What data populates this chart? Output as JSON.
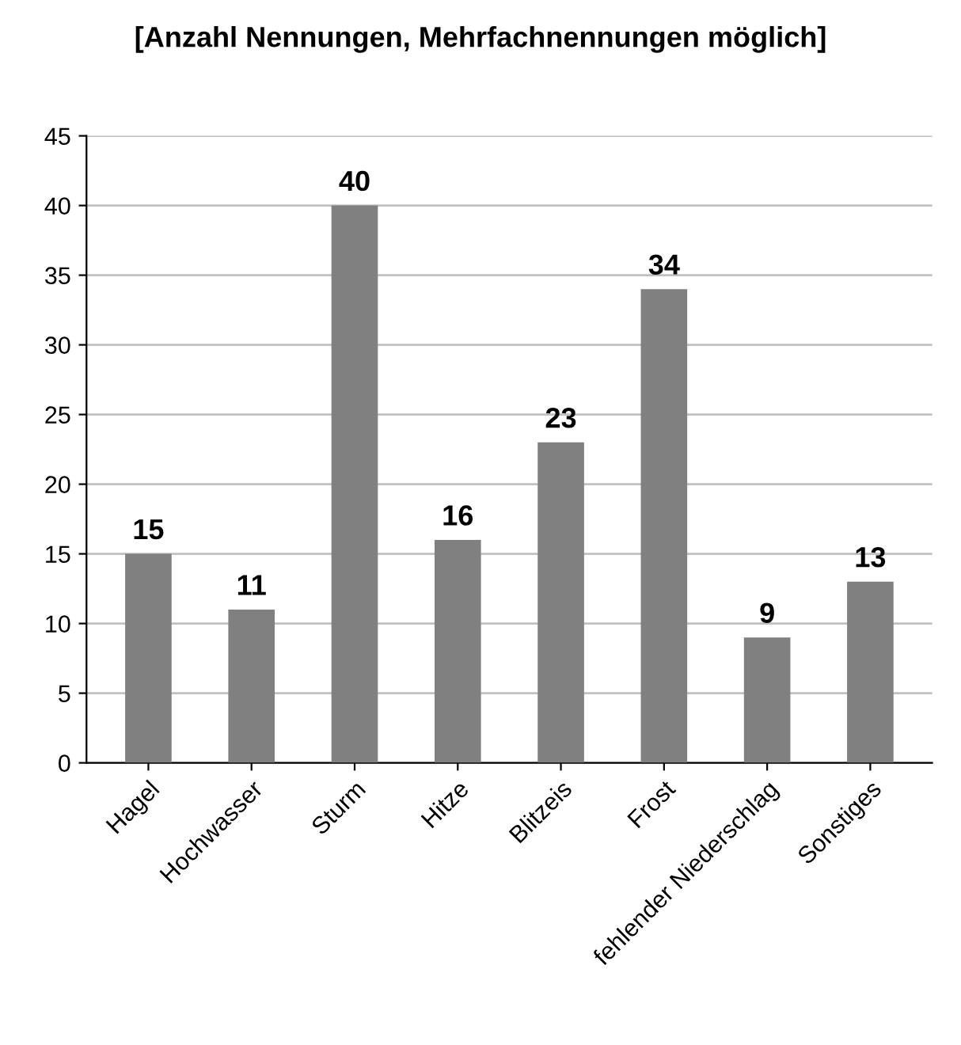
{
  "chart_data": {
    "type": "bar",
    "title": "[Anzahl Nennungen, Mehrfachnennungen möglich]",
    "categories": [
      "Hagel",
      "Hochwasser",
      "Sturm",
      "Hitze",
      "Blitzeis",
      "Frost",
      "fehlender Niederschlag",
      "Sonstiges"
    ],
    "values": [
      15,
      11,
      40,
      16,
      23,
      34,
      9,
      13
    ],
    "color": "#808080",
    "ylim": [
      0,
      45
    ],
    "yticks": [
      0,
      5,
      10,
      15,
      20,
      25,
      30,
      35,
      40,
      45
    ],
    "grid": "y",
    "data_labels": true
  }
}
